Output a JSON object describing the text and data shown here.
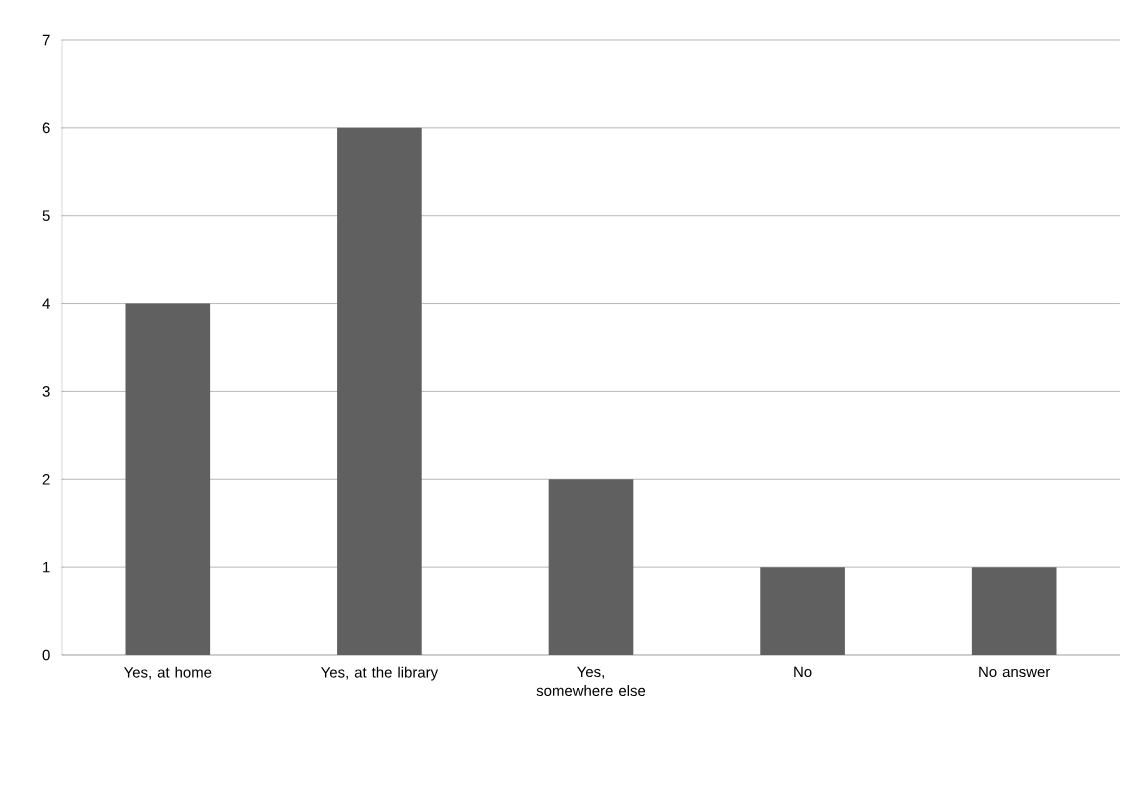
{
  "chart_data": {
    "type": "bar",
    "categories": [
      "Yes, at home",
      "Yes, at the library",
      "Yes, somewhere else",
      "No",
      "No answer"
    ],
    "values": [
      4,
      6,
      2,
      1,
      1
    ],
    "color": "#606060",
    "ylim": [
      0,
      7
    ],
    "yticks": [
      0,
      1,
      2,
      3,
      4,
      5,
      6,
      7
    ],
    "grid": "y"
  }
}
